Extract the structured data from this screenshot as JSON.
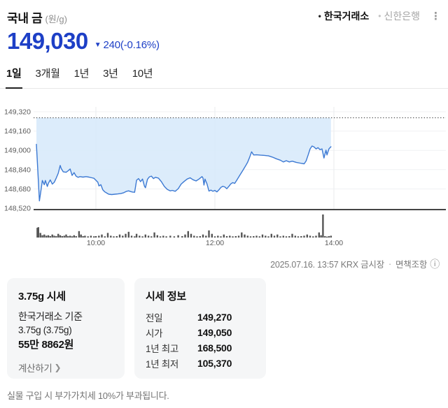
{
  "header": {
    "title": "국내 금",
    "unit": "(원/g)",
    "sources": [
      {
        "key": "krx",
        "label": "한국거래소",
        "active": true
      },
      {
        "key": "shinhan",
        "label": "신한은행",
        "active": false
      }
    ],
    "menu_icon": "⋮"
  },
  "price": {
    "current": "149,030",
    "direction_icon": "▼",
    "change_text": "240(-0.16%)"
  },
  "tabs": [
    {
      "key": "1d",
      "label": "1일",
      "active": true
    },
    {
      "key": "3m",
      "label": "3개월",
      "active": false
    },
    {
      "key": "1y",
      "label": "1년",
      "active": false
    },
    {
      "key": "3y",
      "label": "3년",
      "active": false
    },
    {
      "key": "10y",
      "label": "10년",
      "active": false
    }
  ],
  "chart_data": {
    "type": "area",
    "title": "국내 금 1일 가격 차트",
    "unit": "원/g",
    "ylim": [
      148520,
      149320
    ],
    "y_ticks": [
      149320,
      149160,
      149000,
      148840,
      148680,
      148520
    ],
    "y_tick_labels": [
      "149,320",
      "149,160",
      "149,000",
      "148,840",
      "148,680",
      "148,520"
    ],
    "x_ticks": [
      {
        "t": 60,
        "label": "10:00"
      },
      {
        "t": 180,
        "label": "12:00"
      },
      {
        "t": 300,
        "label": "14:00"
      }
    ],
    "session_start": "09:00",
    "axis_end_minute": 413,
    "prev_close": 149270,
    "open": 149050,
    "last": 149030,
    "last_minute": 297,
    "grid": true,
    "colors": {
      "line": "#3c79d3",
      "fill": "#d7e9fb",
      "prev_close_line": "#2c2c2c",
      "grid": "#f0f1f3",
      "vgrid": "#e9ebee",
      "axis": "#444444",
      "volume": "#555555",
      "tick_text": "#5a5a5a"
    },
    "price_points": [
      [
        0,
        149050
      ],
      [
        1,
        148900
      ],
      [
        3,
        148580
      ],
      [
        5,
        148690
      ],
      [
        6,
        148750
      ],
      [
        8,
        148715
      ],
      [
        9,
        148750
      ],
      [
        11,
        148700
      ],
      [
        12,
        148725
      ],
      [
        14,
        148755
      ],
      [
        16,
        148720
      ],
      [
        18,
        148735
      ],
      [
        20,
        148770
      ],
      [
        22,
        148810
      ],
      [
        24,
        148875
      ],
      [
        25,
        148850
      ],
      [
        27,
        148822
      ],
      [
        30,
        148818
      ],
      [
        32,
        148830
      ],
      [
        34,
        148845
      ],
      [
        36,
        148792
      ],
      [
        38,
        148815
      ],
      [
        40,
        148786
      ],
      [
        42,
        148776
      ],
      [
        44,
        148782
      ],
      [
        47,
        148778
      ],
      [
        50,
        148782
      ],
      [
        53,
        148778
      ],
      [
        56,
        148772
      ],
      [
        58,
        148768
      ],
      [
        60,
        148752
      ],
      [
        62,
        148735
      ],
      [
        63,
        148705
      ],
      [
        65,
        148715
      ],
      [
        67,
        148672
      ],
      [
        69,
        148655
      ],
      [
        71,
        148645
      ],
      [
        73,
        148636
      ],
      [
        76,
        148633
      ],
      [
        79,
        148636
      ],
      [
        82,
        148638
      ],
      [
        85,
        148641
      ],
      [
        88,
        148648
      ],
      [
        91,
        148660
      ],
      [
        93,
        148664
      ],
      [
        95,
        148658
      ],
      [
        97,
        148654
      ],
      [
        99,
        148652
      ],
      [
        100,
        148700
      ],
      [
        101,
        148752
      ],
      [
        103,
        148766
      ],
      [
        105,
        148740
      ],
      [
        107,
        148762
      ],
      [
        109,
        148702
      ],
      [
        110,
        148690
      ],
      [
        112,
        148760
      ],
      [
        114,
        148780
      ],
      [
        116,
        148786
      ],
      [
        118,
        148766
      ],
      [
        120,
        148776
      ],
      [
        123,
        148770
      ],
      [
        126,
        148740
      ],
      [
        129,
        148700
      ],
      [
        132,
        148676
      ],
      [
        135,
        148664
      ],
      [
        137,
        148668
      ],
      [
        140,
        148660
      ],
      [
        143,
        148682
      ],
      [
        146,
        148720
      ],
      [
        149,
        148742
      ],
      [
        152,
        148762
      ],
      [
        155,
        148772
      ],
      [
        158,
        148756
      ],
      [
        161,
        148746
      ],
      [
        164,
        148762
      ],
      [
        167,
        148782
      ],
      [
        168,
        148770
      ],
      [
        169,
        148712
      ],
      [
        170,
        148762
      ],
      [
        172,
        148722
      ],
      [
        174,
        148662
      ],
      [
        176,
        148670
      ],
      [
        178,
        148660
      ],
      [
        180,
        148668
      ],
      [
        182,
        148655
      ],
      [
        184,
        148672
      ],
      [
        186,
        148692
      ],
      [
        188,
        148702
      ],
      [
        190,
        148696
      ],
      [
        192,
        148682
      ],
      [
        194,
        148700
      ],
      [
        196,
        148722
      ],
      [
        198,
        148732
      ],
      [
        200,
        148726
      ],
      [
        202,
        148752
      ],
      [
        205,
        148792
      ],
      [
        208,
        148832
      ],
      [
        211,
        148872
      ],
      [
        213,
        148902
      ],
      [
        215,
        148942
      ],
      [
        217,
        148988
      ],
      [
        219,
        148962
      ],
      [
        222,
        148963
      ],
      [
        226,
        148960
      ],
      [
        230,
        148958
      ],
      [
        234,
        148954
      ],
      [
        238,
        148944
      ],
      [
        242,
        148930
      ],
      [
        246,
        148918
      ],
      [
        249,
        148904
      ],
      [
        252,
        148914
      ],
      [
        255,
        148904
      ],
      [
        258,
        148910
      ],
      [
        262,
        148900
      ],
      [
        266,
        148894
      ],
      [
        270,
        148888
      ],
      [
        272,
        148912
      ],
      [
        274,
        148962
      ],
      [
        276,
        149012
      ],
      [
        278,
        149036
      ],
      [
        280,
        149028
      ],
      [
        282,
        149012
      ],
      [
        284,
        149022
      ],
      [
        286,
        149006
      ],
      [
        288,
        149012
      ],
      [
        290,
        148936
      ],
      [
        292,
        149002
      ],
      [
        293,
        148962
      ],
      [
        295,
        149012
      ],
      [
        297,
        149030
      ]
    ],
    "volume_bars": [
      [
        1,
        0.42
      ],
      [
        2,
        0.45
      ],
      [
        4,
        0.2
      ],
      [
        6,
        0.1
      ],
      [
        8,
        0.13
      ],
      [
        10,
        0.08
      ],
      [
        12,
        0.1
      ],
      [
        14,
        0.06
      ],
      [
        16,
        0.13
      ],
      [
        18,
        0.08
      ],
      [
        20,
        0.06
      ],
      [
        22,
        0.16
      ],
      [
        24,
        0.1
      ],
      [
        26,
        0.06
      ],
      [
        28,
        0.08
      ],
      [
        30,
        0.13
      ],
      [
        32,
        0.06
      ],
      [
        34,
        0.08
      ],
      [
        36,
        0.05
      ],
      [
        38,
        0.1
      ],
      [
        40,
        0.06
      ],
      [
        43,
        0.28
      ],
      [
        45,
        0.13
      ],
      [
        47,
        0.06
      ],
      [
        49,
        0.08
      ],
      [
        52,
        0.05
      ],
      [
        55,
        0.08
      ],
      [
        58,
        0.05
      ],
      [
        60,
        0.06
      ],
      [
        63,
        0.08
      ],
      [
        66,
        0.13
      ],
      [
        69,
        0.05
      ],
      [
        72,
        0.2
      ],
      [
        75,
        0.08
      ],
      [
        78,
        0.05
      ],
      [
        81,
        0.06
      ],
      [
        84,
        0.13
      ],
      [
        87,
        0.08
      ],
      [
        90,
        0.16
      ],
      [
        93,
        0.25
      ],
      [
        96,
        0.08
      ],
      [
        99,
        0.05
      ],
      [
        101,
        0.16
      ],
      [
        104,
        0.08
      ],
      [
        107,
        0.05
      ],
      [
        110,
        0.13
      ],
      [
        113,
        0.08
      ],
      [
        116,
        0.05
      ],
      [
        119,
        0.22
      ],
      [
        122,
        0.1
      ],
      [
        125,
        0.05
      ],
      [
        128,
        0.08
      ],
      [
        131,
        0.05
      ],
      [
        135,
        0.08
      ],
      [
        139,
        0.05
      ],
      [
        143,
        0.1
      ],
      [
        147,
        0.06
      ],
      [
        150,
        0.13
      ],
      [
        153,
        0.28
      ],
      [
        156,
        0.16
      ],
      [
        159,
        0.08
      ],
      [
        162,
        0.05
      ],
      [
        165,
        0.06
      ],
      [
        168,
        0.13
      ],
      [
        171,
        0.08
      ],
      [
        174,
        0.31
      ],
      [
        177,
        0.16
      ],
      [
        180,
        0.05
      ],
      [
        183,
        0.08
      ],
      [
        186,
        0.05
      ],
      [
        189,
        0.13
      ],
      [
        192,
        0.06
      ],
      [
        195,
        0.08
      ],
      [
        198,
        0.05
      ],
      [
        201,
        0.06
      ],
      [
        204,
        0.08
      ],
      [
        207,
        0.22
      ],
      [
        210,
        0.13
      ],
      [
        213,
        0.08
      ],
      [
        216,
        0.05
      ],
      [
        219,
        0.06
      ],
      [
        222,
        0.08
      ],
      [
        225,
        0.05
      ],
      [
        228,
        0.13
      ],
      [
        231,
        0.08
      ],
      [
        234,
        0.05
      ],
      [
        237,
        0.16
      ],
      [
        240,
        0.08
      ],
      [
        243,
        0.13
      ],
      [
        246,
        0.05
      ],
      [
        249,
        0.08
      ],
      [
        252,
        0.05
      ],
      [
        255,
        0.06
      ],
      [
        258,
        0.16
      ],
      [
        261,
        0.08
      ],
      [
        264,
        0.05
      ],
      [
        267,
        0.06
      ],
      [
        270,
        0.08
      ],
      [
        273,
        0.13
      ],
      [
        276,
        0.08
      ],
      [
        279,
        0.05
      ],
      [
        282,
        0.08
      ],
      [
        285,
        0.22
      ],
      [
        287,
        0.1
      ],
      [
        289,
        1.0
      ],
      [
        291,
        0.06
      ],
      [
        293,
        0.04
      ],
      [
        295,
        0.06
      ],
      [
        297,
        0.08
      ]
    ]
  },
  "chart_meta": {
    "timestamp": "2025.07.16. 13:57 KRX 금시장",
    "separator": "·",
    "disclaimer": "면책조항",
    "info_icon": "ⓘ"
  },
  "card_gram": {
    "title": "3.75g 시세",
    "line1": "한국거래소 기준",
    "line2": "3.75g (3.75g)",
    "total": "55만 8862원",
    "link_label": "계산하기",
    "chevron": "❯"
  },
  "card_quote": {
    "title": "시세 정보",
    "rows": [
      {
        "label": "전일",
        "value": "149,270"
      },
      {
        "label": "시가",
        "value": "149,050"
      },
      {
        "label": "1년 최고",
        "value": "168,500"
      },
      {
        "label": "1년 최저",
        "value": "105,370"
      }
    ]
  },
  "footer": {
    "note": "실물 구입 시 부가가치세 10%가 부과됩니다."
  }
}
